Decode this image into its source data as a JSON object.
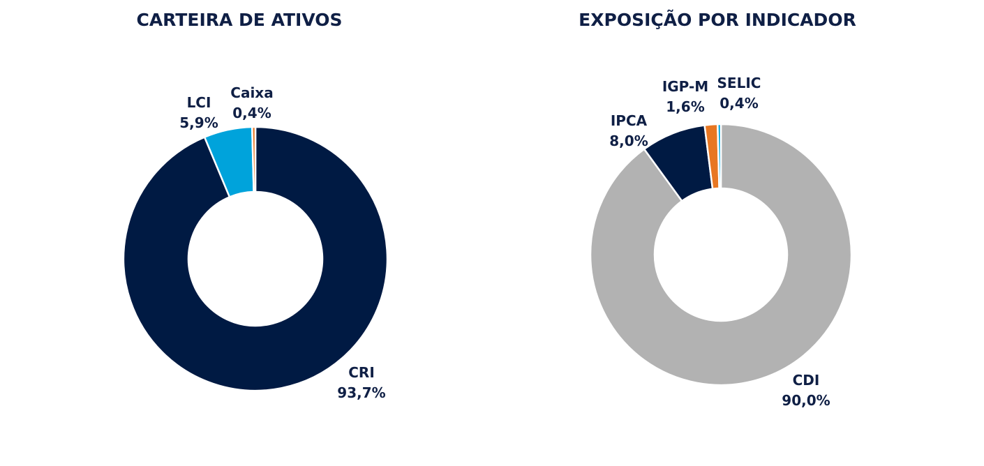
{
  "chart_data": [
    {
      "type": "pie",
      "title": "CARTEIRA DE ATIVOS",
      "slices": [
        {
          "label": "CRI",
          "value": 93.7,
          "value_label": "93,7%",
          "color": "#001a43"
        },
        {
          "label": "LCI",
          "value": 5.9,
          "value_label": "5,9%",
          "color": "#00a3db"
        },
        {
          "label": "Caixa",
          "value": 0.4,
          "value_label": "0,4%",
          "color": "#e87722"
        }
      ]
    },
    {
      "type": "pie",
      "title": "EXPOSIÇÃO POR INDICADOR",
      "slices": [
        {
          "label": "CDI",
          "value": 90.0,
          "value_label": "90,0%",
          "color": "#b2b2b2"
        },
        {
          "label": "IPCA",
          "value": 8.0,
          "value_label": "8,0%",
          "color": "#001a43"
        },
        {
          "label": "IGP-M",
          "value": 1.6,
          "value_label": "1,6%",
          "color": "#e87722"
        },
        {
          "label": "SELIC",
          "value": 0.4,
          "value_label": "0,4%",
          "color": "#00a3db"
        }
      ]
    }
  ]
}
